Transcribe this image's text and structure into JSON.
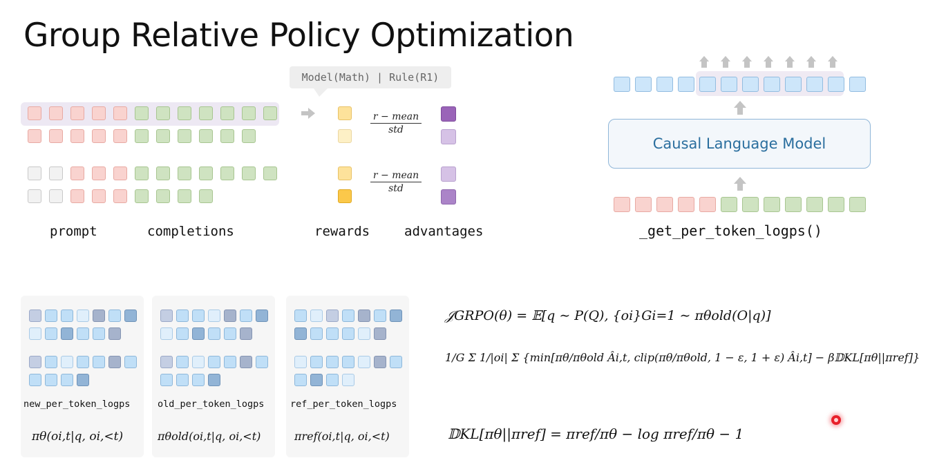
{
  "title": "Group Relative Policy Optimization",
  "reward_source": "Model(Math) | Rule(R1)",
  "normalize": {
    "numerator": "r − mean",
    "denominator": "std"
  },
  "labels": {
    "prompt": "prompt",
    "completions": "completions",
    "rewards": "rewards",
    "advantages": "advantages",
    "get_logps": "_get_per_token_logps()"
  },
  "model_box": "Causal Language Model",
  "panels": [
    {
      "label": "new_per_token_logps",
      "formula": "πθ(oi,t|q, oi,<t)"
    },
    {
      "label": "old_per_token_logps",
      "formula": "πθold(oi,t|q, oi,<t)"
    },
    {
      "label": "ref_per_token_logps",
      "formula": "πref(oi,t|q, oi,<t)"
    }
  ],
  "equations": {
    "objective_line1": "𝒥GRPO(θ) = 𝔼[q ∼ P(Q), {oi}Gi=1 ∼ πθold(O|q)]",
    "objective_line2": "1/G Σ 1/|oi| Σ {min[πθ/πθold Âi,t, clip(πθ/πθold, 1 − ε, 1 + ε) Âi,t] − β𝔻KL[πθ||πref]}",
    "kl": "𝔻KL[πθ||πref] = πref/πθ − log πref/πθ − 1"
  },
  "colors": {
    "prompt": "#f9d3cf",
    "completion": "#cfe3c1",
    "pad": "#f2f2f2",
    "token": "#cde6fa",
    "reward": "#fde29b",
    "advantage": "#9a64b8",
    "model_text": "#2a6e9e"
  }
}
